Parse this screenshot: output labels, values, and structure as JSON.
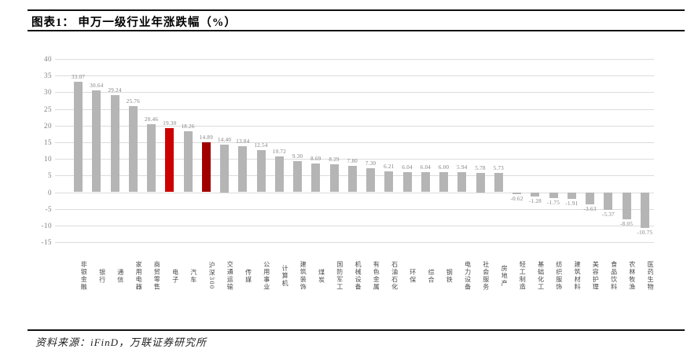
{
  "header": {
    "title": "图表1： 申万一级行业年涨跌幅（%）"
  },
  "footer": {
    "source": "资料来源：iFinD，万联证券研究所"
  },
  "chart_data": {
    "type": "bar",
    "title": "申万一级行业年涨跌幅（%）",
    "xlabel": "",
    "ylabel": "",
    "ylim": [
      -15,
      40
    ],
    "ytick_step": 5,
    "grid": "horizontal",
    "legend": "none",
    "bar_color_default": "#b5b5b5",
    "gridline_color": "#dcdcdc",
    "value_label_decimals": 2,
    "categories": [
      "非银金融",
      "银行",
      "通信",
      "家用电器",
      "商贸零售",
      "电子",
      "汽车",
      "沪深300",
      "交通运输",
      "传媒",
      "公用事业",
      "计算机",
      "建筑装饰",
      "煤炭",
      "国防军工",
      "机械设备",
      "有色金属",
      "石油石化",
      "环保",
      "综合",
      "钢铁",
      "电力设备",
      "社会服务",
      "房地产",
      "轻工制造",
      "基础化工",
      "纺织服饰",
      "建筑材料",
      "美容护理",
      "食品饮料",
      "农林牧渔",
      "医药生物"
    ],
    "values": [
      33.07,
      30.64,
      29.24,
      25.76,
      20.46,
      19.3,
      18.26,
      14.89,
      14.4,
      13.84,
      12.54,
      10.72,
      9.3,
      8.69,
      8.29,
      7.8,
      7.3,
      6.21,
      6.04,
      6.04,
      6.0,
      5.94,
      5.78,
      5.73,
      -0.62,
      -1.28,
      -1.75,
      -1.91,
      -3.63,
      -5.37,
      -8.05,
      -10.75
    ],
    "highlighted_bars": [
      {
        "category": "电子",
        "color": "#cc0000"
      },
      {
        "category": "沪深300",
        "color": "#a00000"
      }
    ]
  }
}
